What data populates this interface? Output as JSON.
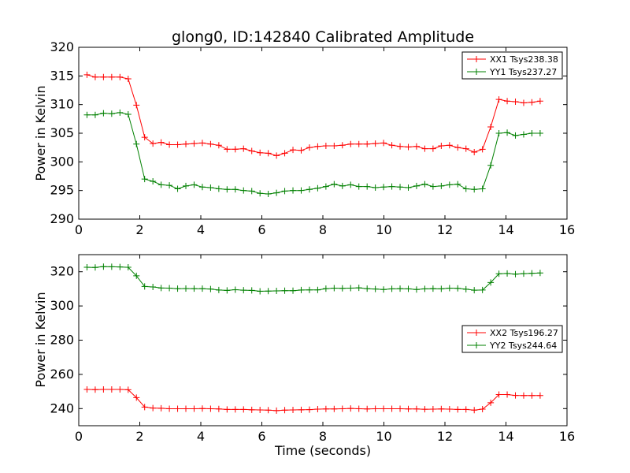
{
  "chart_data": [
    {
      "type": "line",
      "title": "glong0, ID:142840 Calibrated Amplitude",
      "xlabel": "",
      "ylabel": "Power in Kelvin",
      "xlim": [
        0,
        16
      ],
      "ylim": [
        290,
        320
      ],
      "xticks": [
        "0",
        "2",
        "4",
        "6",
        "8",
        "10",
        "12",
        "14",
        "16"
      ],
      "yticks": [
        "290",
        "295",
        "300",
        "305",
        "310",
        "315",
        "320"
      ],
      "legend_position": "top-right",
      "grid": false,
      "x": [
        0.27,
        0.54,
        0.81,
        1.08,
        1.35,
        1.62,
        1.89,
        2.16,
        2.43,
        2.7,
        2.97,
        3.24,
        3.51,
        3.78,
        4.05,
        4.32,
        4.59,
        4.86,
        5.13,
        5.4,
        5.67,
        5.94,
        6.21,
        6.48,
        6.75,
        7.02,
        7.29,
        7.56,
        7.83,
        8.1,
        8.37,
        8.64,
        8.91,
        9.18,
        9.45,
        9.72,
        9.99,
        10.26,
        10.53,
        10.8,
        11.07,
        11.34,
        11.61,
        11.88,
        12.15,
        12.42,
        12.69,
        12.96,
        13.23,
        13.5,
        13.77,
        14.04,
        14.31,
        14.58,
        14.85,
        15.12
      ],
      "series": [
        {
          "name": "XX1 Tsys238.38",
          "color": "#ff0000",
          "values": [
            315.2,
            314.8,
            314.8,
            314.8,
            314.8,
            314.5,
            309.9,
            304.3,
            303.2,
            303.4,
            303.0,
            303.0,
            303.1,
            303.2,
            303.3,
            303.1,
            302.9,
            302.2,
            302.2,
            302.3,
            301.9,
            301.6,
            301.5,
            301.1,
            301.5,
            302.1,
            302.0,
            302.5,
            302.7,
            302.8,
            302.8,
            302.9,
            303.1,
            303.1,
            303.1,
            303.2,
            303.3,
            302.9,
            302.7,
            302.6,
            302.7,
            302.3,
            302.3,
            302.8,
            302.9,
            302.5,
            302.3,
            301.7,
            302.2,
            306.1,
            310.9,
            310.6,
            310.5,
            310.3,
            310.4,
            310.6
          ]
        },
        {
          "name": "YY1 Tsys237.27",
          "color": "#008000",
          "values": [
            308.2,
            308.2,
            308.5,
            308.4,
            308.6,
            308.3,
            303.1,
            297.0,
            296.6,
            296.0,
            295.9,
            295.3,
            295.8,
            296.0,
            295.6,
            295.5,
            295.3,
            295.2,
            295.2,
            295.0,
            294.9,
            294.5,
            294.4,
            294.6,
            294.9,
            295.0,
            295.0,
            295.2,
            295.4,
            295.7,
            296.1,
            295.8,
            296.0,
            295.7,
            295.7,
            295.5,
            295.6,
            295.7,
            295.6,
            295.5,
            295.8,
            296.1,
            295.7,
            295.8,
            296.0,
            296.1,
            295.3,
            295.2,
            295.3,
            299.4,
            305.0,
            305.1,
            304.6,
            304.8,
            305.0,
            305.0
          ]
        }
      ]
    },
    {
      "type": "line",
      "title": "",
      "xlabel": "Time (seconds)",
      "ylabel": "Power in Kelvin",
      "xlim": [
        0,
        16
      ],
      "ylim": [
        230,
        330
      ],
      "xticks": [
        "0",
        "2",
        "4",
        "6",
        "8",
        "10",
        "12",
        "14",
        "16"
      ],
      "yticks": [
        "240",
        "260",
        "280",
        "300",
        "320"
      ],
      "ytick_values": [
        240,
        260,
        280,
        300,
        320
      ],
      "legend_position": "center-right",
      "grid": false,
      "x": [
        0.27,
        0.54,
        0.81,
        1.08,
        1.35,
        1.62,
        1.89,
        2.16,
        2.43,
        2.7,
        2.97,
        3.24,
        3.51,
        3.78,
        4.05,
        4.32,
        4.59,
        4.86,
        5.13,
        5.4,
        5.67,
        5.94,
        6.21,
        6.48,
        6.75,
        7.02,
        7.29,
        7.56,
        7.83,
        8.1,
        8.37,
        8.64,
        8.91,
        9.18,
        9.45,
        9.72,
        9.99,
        10.26,
        10.53,
        10.8,
        11.07,
        11.34,
        11.61,
        11.88,
        12.15,
        12.42,
        12.69,
        12.96,
        13.23,
        13.5,
        13.77,
        14.04,
        14.31,
        14.58,
        14.85,
        15.12
      ],
      "series": [
        {
          "name": "XX2 Tsys196.27",
          "color": "#ff0000",
          "values": [
            251.2,
            251.1,
            251.2,
            251.2,
            251.2,
            251.0,
            246.4,
            240.9,
            240.3,
            240.2,
            239.9,
            239.9,
            239.9,
            239.9,
            240.0,
            239.9,
            239.8,
            239.5,
            239.5,
            239.5,
            239.3,
            239.2,
            239.1,
            238.8,
            239.1,
            239.2,
            239.3,
            239.4,
            239.7,
            239.8,
            239.8,
            239.9,
            240.1,
            239.9,
            239.8,
            239.9,
            239.9,
            239.9,
            239.9,
            239.8,
            239.8,
            239.6,
            239.7,
            239.8,
            239.7,
            239.5,
            239.5,
            239.1,
            239.7,
            243.4,
            248.2,
            248.2,
            247.7,
            247.6,
            247.6,
            247.6
          ]
        },
        {
          "name": "YY2 Tsys244.64",
          "color": "#008000",
          "values": [
            322.6,
            322.5,
            323.0,
            322.9,
            322.8,
            322.6,
            317.6,
            311.4,
            311.1,
            310.5,
            310.4,
            310.1,
            310.2,
            310.1,
            310.1,
            309.9,
            309.3,
            309.1,
            309.5,
            309.2,
            309.1,
            308.6,
            308.7,
            308.8,
            308.9,
            308.9,
            309.3,
            309.4,
            309.4,
            310.1,
            310.4,
            310.3,
            310.4,
            310.6,
            310.1,
            309.9,
            309.6,
            310.0,
            310.1,
            310.0,
            309.6,
            310.0,
            310.1,
            310.0,
            310.4,
            310.3,
            309.8,
            309.2,
            309.3,
            313.7,
            318.8,
            319.0,
            318.6,
            318.9,
            319.1,
            319.3
          ]
        }
      ]
    }
  ]
}
